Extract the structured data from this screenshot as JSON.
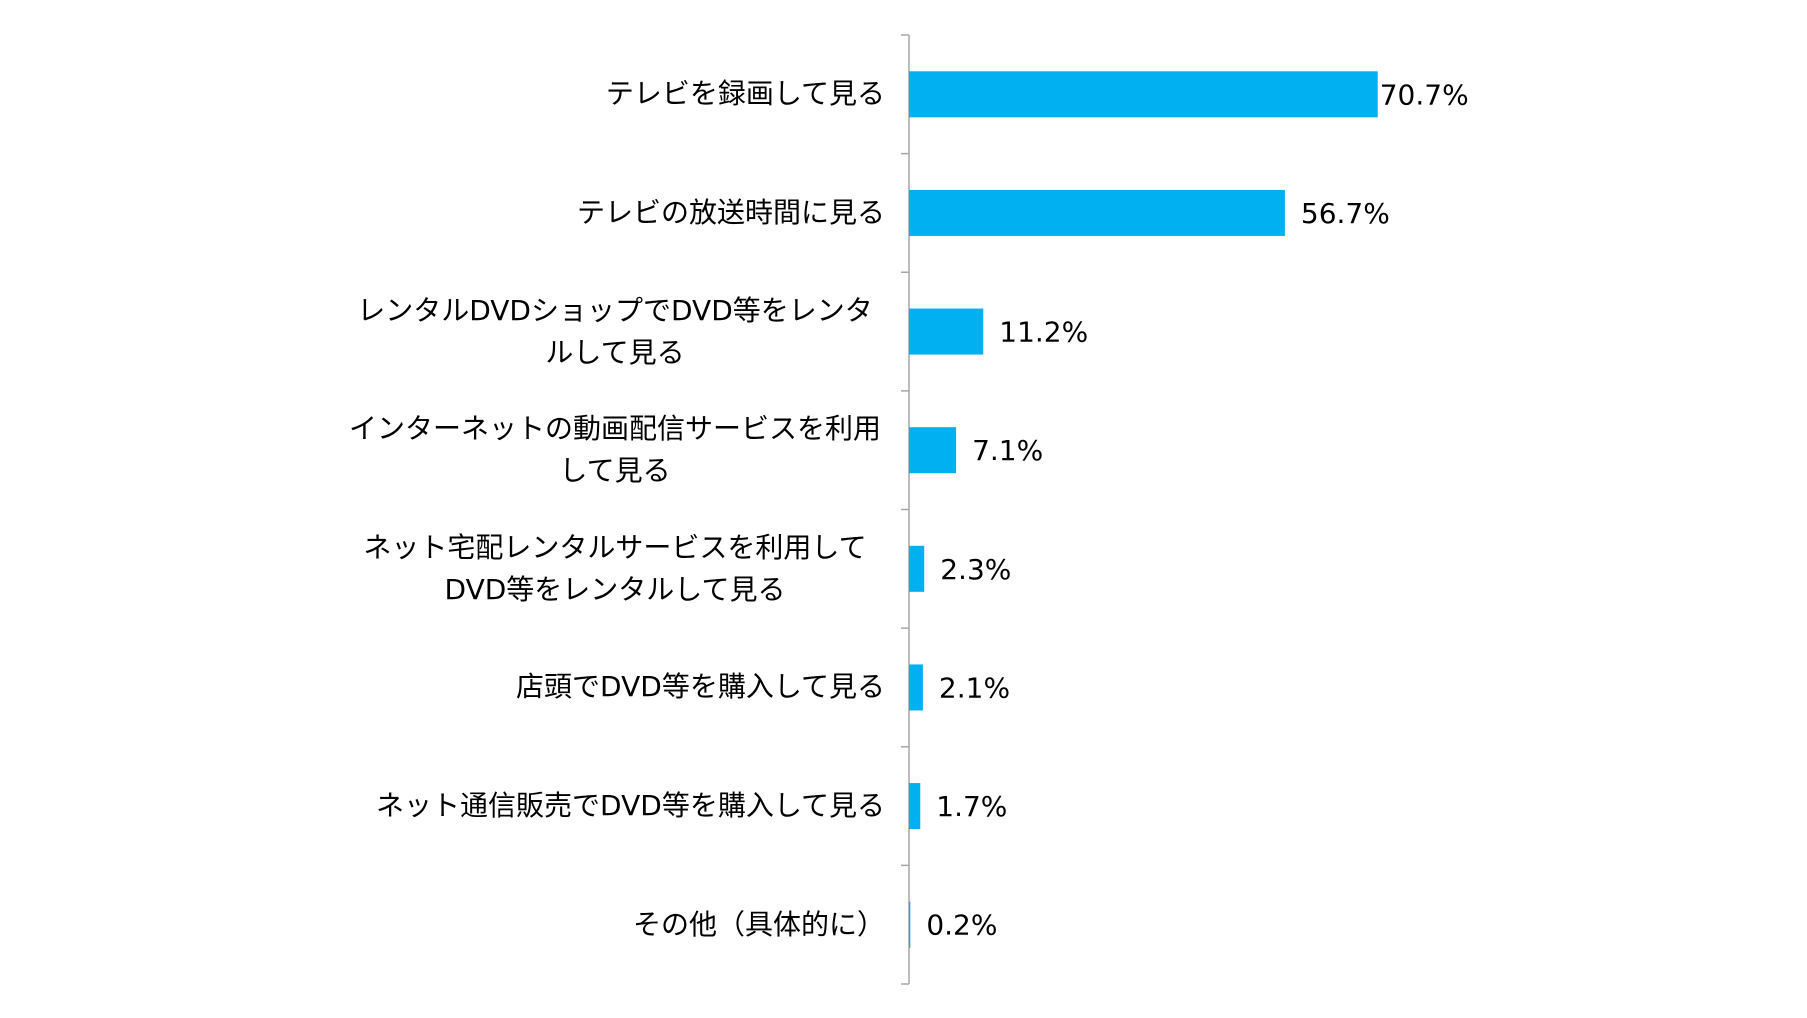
{
  "chart_data": {
    "type": "bar",
    "orientation": "horizontal",
    "categories": [
      "テレビを録画して見る",
      "テレビの放送時間に見る",
      "レンタルDVDショップでDVD等をレンタルして見る",
      "インターネットの動画配信サービスを利用して見る",
      "ネット宅配レンタルサービスを利用してDVD等をレンタルして見る",
      "店頭でDVD等を購入して見る",
      "ネット通信販売でDVD等を購入して見る",
      "その他（具体的に）"
    ],
    "values": [
      70.7,
      56.7,
      11.2,
      7.1,
      2.3,
      2.1,
      1.7,
      0.2
    ],
    "value_labels": [
      "70.7%",
      "56.7%",
      "11.2%",
      "7.1%",
      "2.3%",
      "2.1%",
      "1.7%",
      "0.2%"
    ],
    "color": "#00b0f0",
    "xlim": [
      0,
      100
    ]
  }
}
